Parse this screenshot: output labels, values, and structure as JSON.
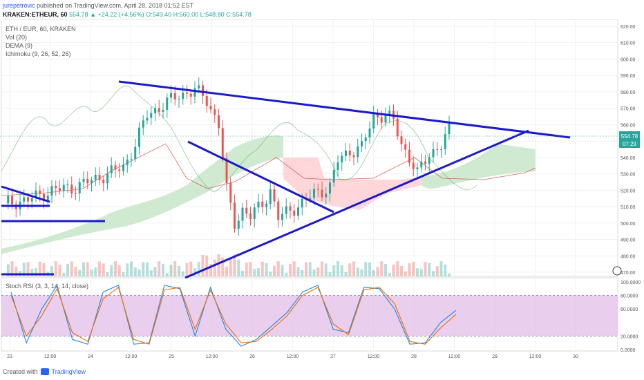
{
  "header": {
    "author": "jurepetrovic",
    "published_text": "published on TradingView.com, April 28, 2018 01:52 EST",
    "ticker": "KRAKEN:ETHEUR, 60",
    "last_price": "554.78",
    "change": "+24.22 (+4.56%)",
    "ohlc": "O:549.40 H:560.00 L:548.80 C:554.78"
  },
  "legend": {
    "symbol": "ETH / EUR, 60, KRAKEN",
    "volume": "Vol (20)",
    "dema": "DEMA (9)",
    "ichimoku": "Ichimoku (9, 26, 52, 26)"
  },
  "stoch_label": "Stoch RSI (3, 3, 14, 14, close)",
  "footer": {
    "created_with": "Created with",
    "brand": "TradingView"
  },
  "price_badge": {
    "price": "554.78",
    "countdown": "07:29"
  },
  "colors": {
    "up": "#26a69a",
    "down": "#ef5350",
    "trend": "#1a1ac8",
    "cloud_green": "#c8e6c9",
    "cloud_red": "#ffcdd2",
    "stoch_band": "#e1bee7"
  },
  "chart_data": {
    "type": "candlestick",
    "price_axis": {
      "ticks": [
        620,
        610,
        600,
        590,
        580,
        570,
        560,
        550,
        540,
        530,
        520,
        510,
        500,
        490,
        480,
        470
      ],
      "min": 470,
      "max": 620
    },
    "stoch_axis": {
      "ticks": [
        "100.0000",
        "80.0000",
        "60.0000",
        "20.0000",
        "0.0000"
      ],
      "band": [
        20,
        80
      ]
    },
    "time_axis": [
      "23",
      "12:00",
      "24",
      "12:00",
      "25",
      "12:00",
      "26",
      "12:00",
      "27",
      "12:00",
      "28",
      "12:00",
      "29",
      "12:00",
      "30"
    ],
    "price_path": [
      [
        0,
        512
      ],
      [
        6,
        514
      ],
      [
        12,
        520
      ],
      [
        18,
        522
      ],
      [
        22,
        526
      ],
      [
        26,
        530
      ],
      [
        30,
        534
      ],
      [
        33,
        548
      ],
      [
        36,
        566
      ],
      [
        40,
        572
      ],
      [
        44,
        578
      ],
      [
        48,
        581
      ],
      [
        51,
        575
      ],
      [
        54,
        560
      ],
      [
        56,
        520
      ],
      [
        58,
        500
      ],
      [
        60,
        508
      ],
      [
        62,
        504
      ],
      [
        65,
        512
      ],
      [
        67,
        520
      ],
      [
        69,
        503
      ],
      [
        72,
        508
      ],
      [
        75,
        512
      ],
      [
        78,
        518
      ],
      [
        80,
        520
      ],
      [
        82,
        522
      ],
      [
        84,
        538
      ],
      [
        87,
        544
      ],
      [
        90,
        546
      ],
      [
        93,
        565
      ],
      [
        96,
        566
      ],
      [
        98,
        562
      ],
      [
        100,
        548
      ],
      [
        102,
        540
      ],
      [
        104,
        530
      ],
      [
        107,
        542
      ],
      [
        110,
        548
      ],
      [
        112,
        556
      ]
    ],
    "stoch_k": [
      [
        0,
        85
      ],
      [
        3,
        10
      ],
      [
        6,
        60
      ],
      [
        9,
        95
      ],
      [
        12,
        15
      ],
      [
        15,
        8
      ],
      [
        18,
        85
      ],
      [
        21,
        95
      ],
      [
        24,
        8
      ],
      [
        27,
        10
      ],
      [
        30,
        95
      ],
      [
        33,
        90
      ],
      [
        36,
        20
      ],
      [
        39,
        92
      ],
      [
        42,
        30
      ],
      [
        45,
        5
      ],
      [
        48,
        15
      ],
      [
        51,
        35
      ],
      [
        54,
        55
      ],
      [
        57,
        85
      ],
      [
        60,
        95
      ],
      [
        63,
        30
      ],
      [
        66,
        25
      ],
      [
        69,
        92
      ],
      [
        72,
        90
      ],
      [
        75,
        60
      ],
      [
        78,
        8
      ],
      [
        81,
        10
      ],
      [
        84,
        40
      ],
      [
        87,
        58
      ]
    ],
    "stoch_d": [
      [
        0,
        80
      ],
      [
        3,
        20
      ],
      [
        6,
        50
      ],
      [
        9,
        90
      ],
      [
        12,
        25
      ],
      [
        15,
        12
      ],
      [
        18,
        75
      ],
      [
        21,
        92
      ],
      [
        24,
        15
      ],
      [
        27,
        8
      ],
      [
        30,
        88
      ],
      [
        33,
        92
      ],
      [
        36,
        30
      ],
      [
        39,
        88
      ],
      [
        42,
        38
      ],
      [
        45,
        10
      ],
      [
        48,
        12
      ],
      [
        51,
        30
      ],
      [
        54,
        50
      ],
      [
        57,
        80
      ],
      [
        60,
        92
      ],
      [
        63,
        38
      ],
      [
        66,
        22
      ],
      [
        69,
        88
      ],
      [
        72,
        92
      ],
      [
        75,
        68
      ],
      [
        78,
        12
      ],
      [
        81,
        8
      ],
      [
        84,
        32
      ],
      [
        87,
        52
      ]
    ]
  }
}
